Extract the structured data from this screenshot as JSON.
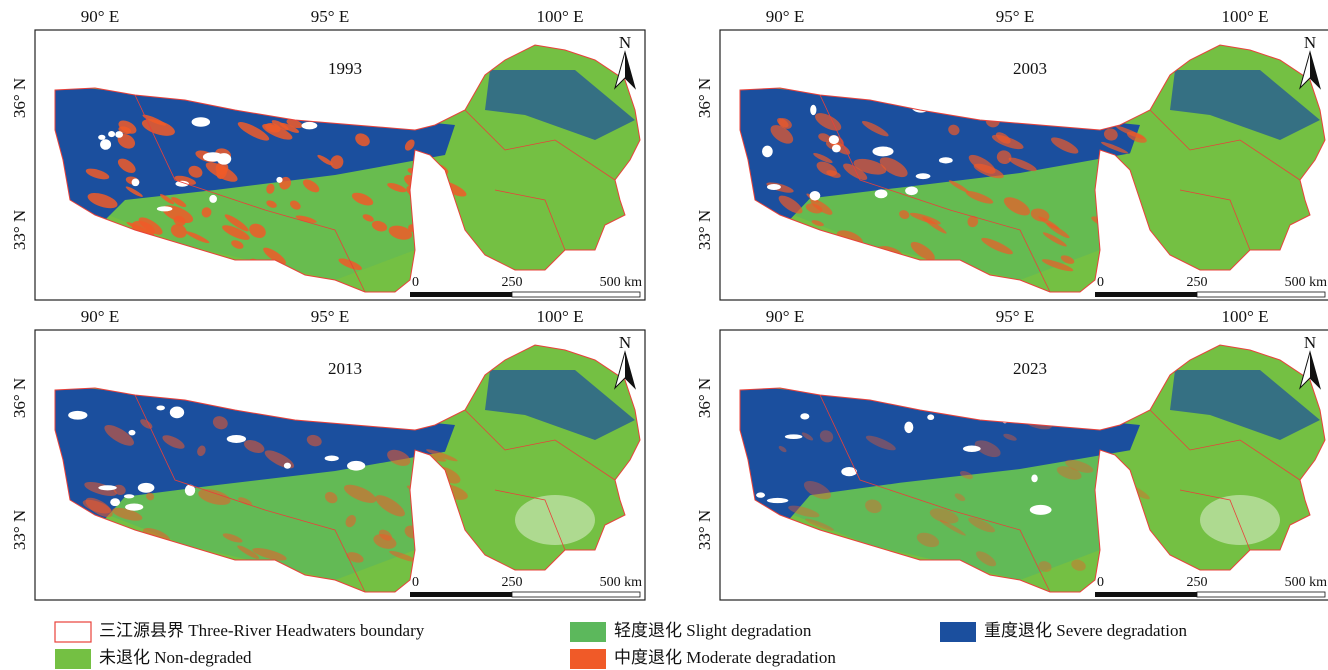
{
  "panels": [
    {
      "year": "1993"
    },
    {
      "year": "2003"
    },
    {
      "year": "2013"
    },
    {
      "year": "2023"
    }
  ],
  "lon_labels": [
    "90° E",
    "95° E",
    "100° E"
  ],
  "lat_labels": [
    "36° N",
    "33° N"
  ],
  "north": "N",
  "scale": [
    "0",
    "250",
    "500 km"
  ],
  "legend": [
    {
      "label": "三江源县界 Three-River Headwaters boundary",
      "color": "#e8413a"
    },
    {
      "label": "轻度退化 Slight degradation",
      "color": "#5cb85c"
    },
    {
      "label": "重度退化 Severe degradation",
      "color": "#1b4f9e"
    },
    {
      "label": "未退化 Non-degraded",
      "color": "#74c043"
    },
    {
      "label": "中度退化 Moderate degradation",
      "color": "#f05a28"
    }
  ]
}
